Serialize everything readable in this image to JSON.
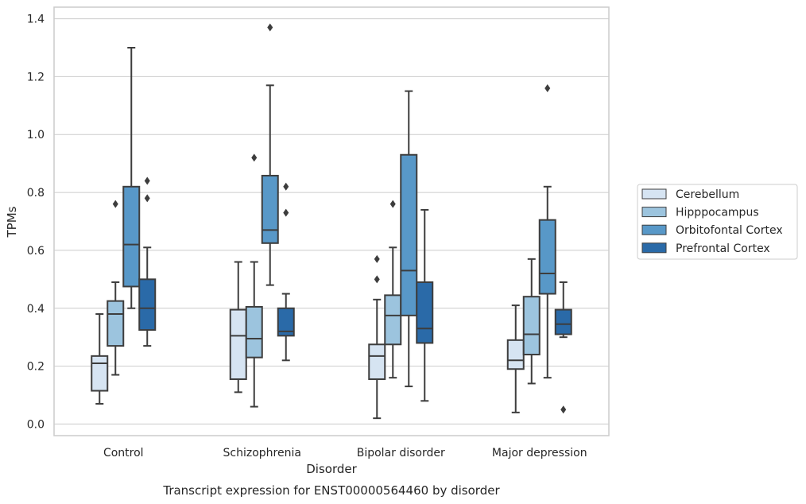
{
  "chart_data": {
    "type": "boxplot",
    "title": "Transcript expression for ENST00000564460 by disorder",
    "xlabel": "Disorder",
    "ylabel": "TPMs",
    "ylim": [
      -0.04,
      1.44
    ],
    "yticks": [
      0.0,
      0.2,
      0.4,
      0.6,
      0.8,
      1.0,
      1.2,
      1.4
    ],
    "ytick_labels": [
      "0.0",
      "0.2",
      "0.4",
      "0.6",
      "0.8",
      "1.0",
      "1.2",
      "1.4"
    ],
    "grid": "horizontal",
    "legend_position": "right",
    "categories": [
      "Control",
      "Schizophrenia",
      "Bipolar disorder",
      "Major depression"
    ],
    "series": [
      {
        "name": "Cerebellum",
        "color": "#d6e4f2",
        "boxes": [
          {
            "whislo": 0.07,
            "q1": 0.115,
            "med": 0.21,
            "q3": 0.235,
            "whishi": 0.38,
            "fliers": []
          },
          {
            "whislo": 0.11,
            "q1": 0.155,
            "med": 0.305,
            "q3": 0.395,
            "whishi": 0.56,
            "fliers": []
          },
          {
            "whislo": 0.02,
            "q1": 0.155,
            "med": 0.235,
            "q3": 0.275,
            "whishi": 0.43,
            "fliers": [
              0.5,
              0.57
            ]
          },
          {
            "whislo": 0.04,
            "q1": 0.19,
            "med": 0.22,
            "q3": 0.29,
            "whishi": 0.41,
            "fliers": []
          }
        ]
      },
      {
        "name": "Hipppocampus",
        "color": "#9cc4de",
        "boxes": [
          {
            "whislo": 0.17,
            "q1": 0.27,
            "med": 0.38,
            "q3": 0.425,
            "whishi": 0.49,
            "fliers": [
              0.76
            ]
          },
          {
            "whislo": 0.06,
            "q1": 0.23,
            "med": 0.295,
            "q3": 0.405,
            "whishi": 0.56,
            "fliers": [
              0.92
            ]
          },
          {
            "whislo": 0.16,
            "q1": 0.275,
            "med": 0.375,
            "q3": 0.445,
            "whishi": 0.61,
            "fliers": [
              0.76
            ]
          },
          {
            "whislo": 0.14,
            "q1": 0.24,
            "med": 0.31,
            "q3": 0.44,
            "whishi": 0.57,
            "fliers": []
          }
        ]
      },
      {
        "name": "Orbitofontal Cortex",
        "color": "#5898c8",
        "boxes": [
          {
            "whislo": 0.4,
            "q1": 0.475,
            "med": 0.62,
            "q3": 0.82,
            "whishi": 1.3,
            "fliers": []
          },
          {
            "whislo": 0.48,
            "q1": 0.625,
            "med": 0.67,
            "q3": 0.858,
            "whishi": 1.17,
            "fliers": [
              1.37
            ]
          },
          {
            "whislo": 0.13,
            "q1": 0.375,
            "med": 0.53,
            "q3": 0.93,
            "whishi": 1.15,
            "fliers": []
          },
          {
            "whislo": 0.16,
            "q1": 0.45,
            "med": 0.52,
            "q3": 0.705,
            "whishi": 0.82,
            "fliers": [
              1.16
            ]
          }
        ]
      },
      {
        "name": "Prefrontal Cortex",
        "color": "#2a6aa8",
        "boxes": [
          {
            "whislo": 0.27,
            "q1": 0.325,
            "med": 0.4,
            "q3": 0.5,
            "whishi": 0.61,
            "fliers": [
              0.78,
              0.84
            ]
          },
          {
            "whislo": 0.22,
            "q1": 0.305,
            "med": 0.32,
            "q3": 0.4,
            "whishi": 0.45,
            "fliers": [
              0.73,
              0.82
            ]
          },
          {
            "whislo": 0.08,
            "q1": 0.28,
            "med": 0.33,
            "q3": 0.49,
            "whishi": 0.74,
            "fliers": []
          },
          {
            "whislo": 0.3,
            "q1": 0.31,
            "med": 0.345,
            "q3": 0.395,
            "whishi": 0.49,
            "fliers": [
              0.05
            ]
          }
        ]
      }
    ],
    "style": {
      "line_color": "#3d3d3d",
      "grid_color": "#cccccc",
      "frame_color": "#cccccc",
      "background": "#ffffff"
    }
  }
}
